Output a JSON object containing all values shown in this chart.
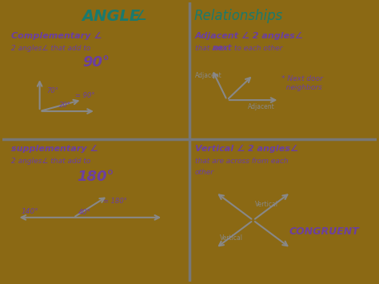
{
  "bg_color": "#8B6914",
  "paper_color": "#f0f0ec",
  "teal_color": "#1a7a6e",
  "purple_color": "#6b3fa0",
  "gray_color": "#888888",
  "divider_color": "#777777",
  "title_angle": "ANGLE",
  "title_rest": "Relationships",
  "comp_title": "Complementary ∠",
  "comp_sub": "2 angles∠ that add to",
  "comp_val": "90°",
  "adj_title": "Adjacent ∠ 2 angles∠",
  "adj_sub1": "that are ",
  "adj_sub2": "next",
  "adj_sub3": " to each other",
  "adj_note": "* Next door\n  neighbors",
  "adj_label1": "Adjacent",
  "adj_label2": "Adjacent",
  "supp_title": "supplementary ∠",
  "supp_sub": "2 angles∠ that add to",
  "supp_val": "180°",
  "vert_title": "Vertical ∠ 2 angles∠",
  "vert_sub": "that are across from each\nother",
  "vert_label": "Vertical",
  "vert_congruent": "CONGRUENT",
  "comp_labels": [
    "70°",
    "20°",
    "= 90°"
  ],
  "supp_labels": [
    "140°",
    "40°",
    "= 180°"
  ]
}
